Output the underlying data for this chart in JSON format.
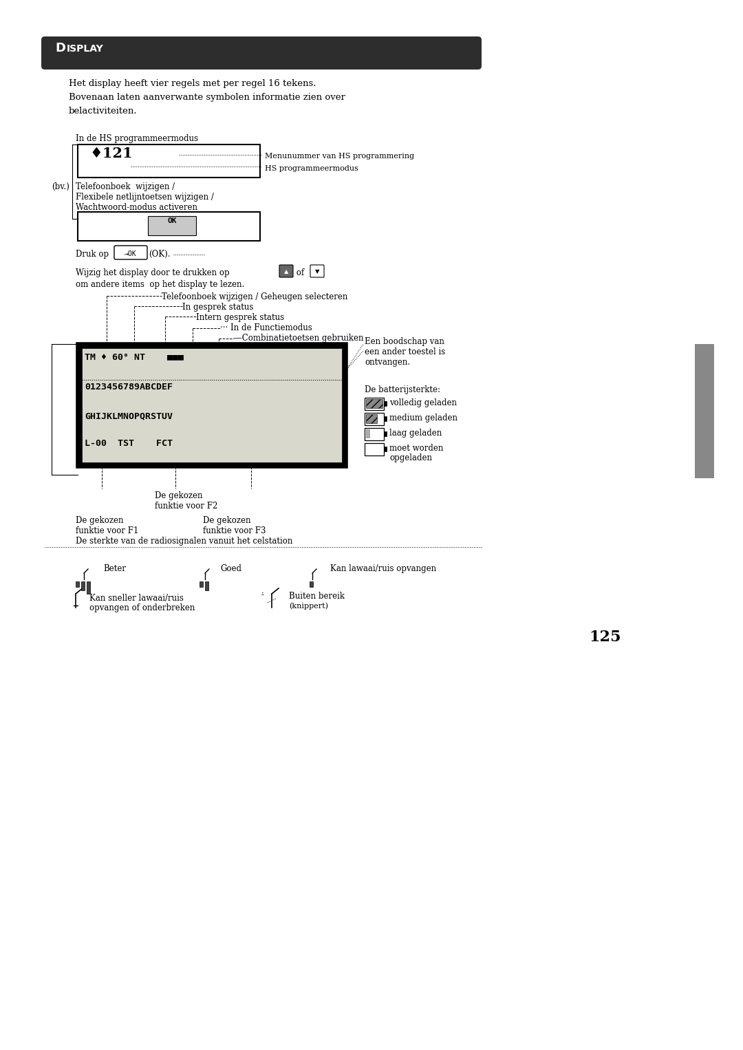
{
  "bg_color": "#ffffff",
  "page_width": 10.8,
  "page_height": 15.26,
  "dpi": 100,
  "pw": 1080,
  "ph": 1526,
  "title_text_D": "D",
  "title_text_rest": "ISPLAY",
  "intro_line1": "Het display heeft vier regels met per regel 16 tekens.",
  "intro_line2": "Bovenaan laten aanverwante symbolen informatie zien over",
  "intro_line3": "belactiviteiten.",
  "label_hs": "In de HS programmeermodus",
  "label_bv": "(bv.)",
  "label_tel1": "Telefoonboek  wijzigen /",
  "label_tel2": "Flexibele netlijntoetsen wijzigen /",
  "label_tel3": "Wachtwoord-modus activeren",
  "label_druk": "Druk op",
  "label_ok_btn": "→OK",
  "label_ok_suffix": "(OK).",
  "label_wijzig1": "Wijzig het display door te drukken op",
  "label_wijzig2": "om andere items  op het display te lezen.",
  "label_of": " of ",
  "labels_cascade": [
    "Telefoonboek wijzigen / Geheugen selecteren",
    "In gesprek status",
    "Intern gesprek status",
    "··· In de Functiemodus",
    "—Combinatietoetsen gebruiken"
  ],
  "label_boodschap1": "Een boodschap van",
  "label_boodschap2": "een ander toestel is",
  "label_boodschap3": "ontvangen.",
  "display_row1": "TM ♦ 60° NT    ■■■",
  "display_row2": "0123456789ABCDEF",
  "display_row3": "GHIJKLMNOPQRSTUV",
  "display_row4": "L-00  TST    FCT",
  "label_batt": "De batterijsterkte:",
  "batt_labels": [
    "volledig geladen",
    "medium geladen",
    "laag geladen",
    "moet worden",
    "opgeladen"
  ],
  "label_f2": "De gekozen\nfunktie voor F2",
  "label_f1_1": "De gekozen",
  "label_f1_2": "funktie voor F1",
  "label_f3_1": "De gekozen",
  "label_f3_2": "funktie voor F3",
  "label_radio": "De sterkte van de radiosignalen vanuit het celstation",
  "label_beter": "Beter",
  "label_goed": "Goed",
  "label_lawaai": "Kan lawaai/ruis opvangen",
  "label_sneller1": "Kan sneller lawaai/ruis",
  "label_sneller2": "opvangen of onderbreken",
  "label_buiten": "Buiten bereik",
  "label_knippert": "(knippert)",
  "page_number": "125"
}
